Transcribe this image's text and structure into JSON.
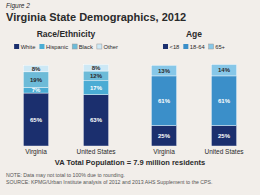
{
  "title": "Virginia State Demographics, 2012",
  "annotations": [
    "Figure 2",
    "VA Total Population = 7.9 million residents",
    "NOTE: Data may not total to 100% due to rounding.",
    "SOURCE: KPMG/Urban Institute analysis of 2012 and 2013 AHS Supplement to the CPS."
  ],
  "chart_data": [
    {
      "type": "bar",
      "stacked": true,
      "title": "Race/Ethnicity",
      "categories": [
        "Virginia",
        "United States"
      ],
      "series": [
        {
          "name": "White",
          "color": "#1b2f6e",
          "values": [
            65,
            63
          ],
          "value_labels": [
            "65%",
            "63%"
          ]
        },
        {
          "name": "Hispanic",
          "color": "#4aacd4",
          "values": [
            7,
            17
          ],
          "value_labels": [
            "7%",
            "17%"
          ]
        },
        {
          "name": "Black",
          "color": "#6dbbd8",
          "values": [
            19,
            12
          ],
          "value_labels": [
            "19%",
            "12%"
          ]
        },
        {
          "name": "Other",
          "color": "#cde8f5",
          "values": [
            8,
            8
          ],
          "value_labels": [
            "8%",
            "8%"
          ]
        }
      ],
      "ylim": [
        0,
        108
      ],
      "grid": false,
      "legend": "top",
      "data_labels": true,
      "tick_labels": "x"
    },
    {
      "type": "bar",
      "stacked": true,
      "title": "Age",
      "categories": [
        "Virginia",
        "United States"
      ],
      "series": [
        {
          "name": "<18",
          "color": "#1b2f6e",
          "values": [
            25,
            25
          ],
          "value_labels": [
            "25%",
            "25%"
          ]
        },
        {
          "name": "18-64",
          "color": "#3b8fc9",
          "values": [
            61,
            61
          ],
          "value_labels": [
            "61%",
            "61%"
          ]
        },
        {
          "name": "65+",
          "color": "#87c7e8",
          "values": [
            13,
            14
          ],
          "value_labels": [
            "13%",
            "14%"
          ]
        }
      ],
      "ylim": [
        0,
        108
      ],
      "grid": false,
      "legend": "top",
      "data_labels": true,
      "tick_labels": "x"
    }
  ]
}
